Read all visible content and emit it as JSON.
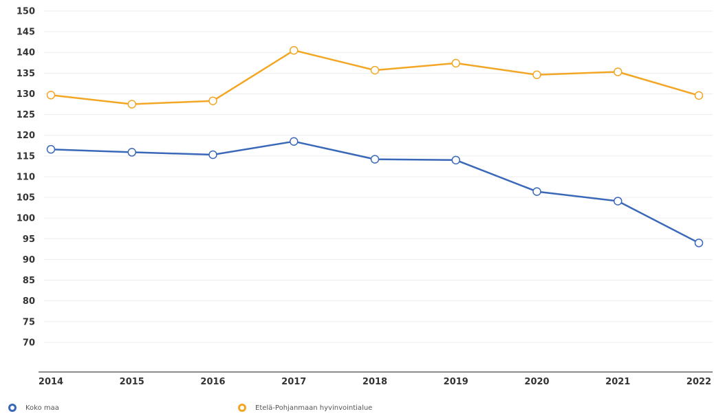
{
  "chart_data": {
    "type": "line",
    "title": "",
    "xlabel": "",
    "ylabel": "",
    "x": [
      "2014",
      "2015",
      "2016",
      "2017",
      "2018",
      "2019",
      "2020",
      "2021",
      "2022"
    ],
    "ylim": [
      65,
      150
    ],
    "y_ticks": [
      70,
      75,
      80,
      85,
      90,
      95,
      100,
      105,
      110,
      115,
      120,
      125,
      130,
      135,
      140,
      145,
      150
    ],
    "grid": true,
    "legend_position": "bottom",
    "series": [
      {
        "name": "Koko maa",
        "color": "#3a68b8",
        "values": [
          116.6,
          115.9,
          115.3,
          118.5,
          114.2,
          114.0,
          106.4,
          104.1,
          94.0
        ]
      },
      {
        "name": "Etelä-Pohjanmaan hyvinvointialue",
        "color": "#f2a623",
        "values": [
          129.7,
          127.5,
          128.3,
          140.5,
          135.7,
          137.4,
          134.6,
          135.3,
          129.6
        ]
      }
    ]
  }
}
